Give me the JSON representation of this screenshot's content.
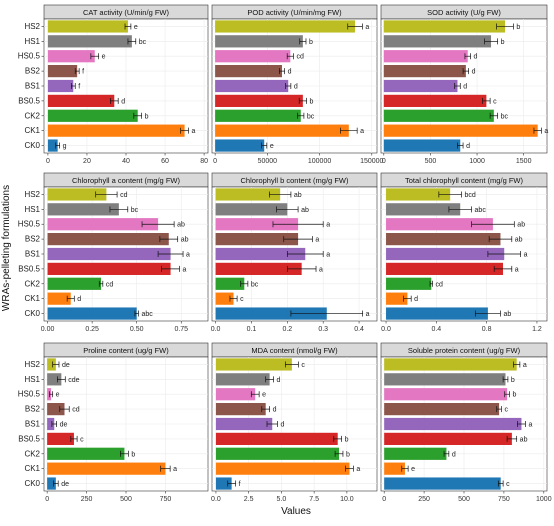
{
  "figure": {
    "ylabel": "WRAs-pelleting formulations",
    "xlabel": "Values",
    "categories": [
      "HS2",
      "HS1",
      "HS0.5",
      "BS2",
      "BS1",
      "BS0.5",
      "CK2",
      "CK1",
      "CK0"
    ],
    "colors": [
      "#bcbd22",
      "#7f7f7f",
      "#e377c2",
      "#8c564b",
      "#9467bd",
      "#d62728",
      "#2ca02c",
      "#ff7f0e",
      "#1f77b4"
    ]
  },
  "chart_data": [
    {
      "type": "bar",
      "orientation": "horizontal",
      "title": "CAT activity (U/min/g FW)",
      "categories": [
        "HS2",
        "HS1",
        "HS0.5",
        "BS2",
        "BS1",
        "BS0.5",
        "CK2",
        "CK1",
        "CK0"
      ],
      "values": [
        41,
        43,
        24,
        15,
        13,
        34,
        46,
        70,
        5
      ],
      "errors": [
        1.5,
        2,
        2,
        1,
        1,
        2,
        2,
        2,
        1
      ],
      "labels": [
        "e",
        "bc",
        "e",
        "f",
        "f",
        "d",
        "b",
        "a",
        "g"
      ],
      "xlim": [
        -2,
        82
      ],
      "xticks": [
        "0",
        "20",
        "40",
        "60",
        "80"
      ],
      "xtick_values": [
        0,
        20,
        40,
        60,
        80
      ]
    },
    {
      "type": "bar",
      "orientation": "horizontal",
      "title": "POD activity (U/min/mg FW)",
      "categories": [
        "HS2",
        "HS1",
        "HS0.5",
        "BS2",
        "BS1",
        "BS0.5",
        "CK2",
        "CK1",
        "CK0"
      ],
      "values": [
        134000,
        84000,
        72000,
        64000,
        70000,
        84000,
        82000,
        128000,
        47000
      ],
      "errors": [
        7000,
        3000,
        3000,
        2500,
        2500,
        3500,
        3000,
        8000,
        2500
      ],
      "labels": [
        "a",
        "b",
        "cd",
        "d",
        "d",
        "b",
        "bc",
        "a",
        "e"
      ],
      "xlim": [
        -3000,
        155000
      ],
      "xticks": [
        "0",
        "50000",
        "100000",
        "150000"
      ],
      "xtick_values": [
        0,
        50000,
        100000,
        150000
      ]
    },
    {
      "type": "bar",
      "orientation": "horizontal",
      "title": "SOD activity (U/g FW)",
      "categories": [
        "HS2",
        "HS1",
        "HS0.5",
        "BS2",
        "BS1",
        "BS0.5",
        "CK2",
        "CK1",
        "CK0"
      ],
      "values": [
        1300,
        1150,
        900,
        880,
        790,
        1100,
        1180,
        1650,
        820
      ],
      "errors": [
        90,
        70,
        30,
        30,
        30,
        40,
        40,
        40,
        30
      ],
      "labels": [
        "b",
        "b",
        "d",
        "d",
        "d",
        "c",
        "bc",
        "a",
        "d"
      ],
      "xlim": [
        -30,
        1750
      ],
      "xticks": [
        "0",
        "500",
        "1000",
        "1500"
      ],
      "xtick_values": [
        0,
        500,
        1000,
        1500
      ]
    },
    {
      "type": "bar",
      "orientation": "horizontal",
      "title": "Chlorophyll a content (mg/g FW)",
      "categories": [
        "HS2",
        "HS1",
        "HS0.5",
        "BS2",
        "BS1",
        "BS0.5",
        "CK2",
        "CK1",
        "CK0"
      ],
      "values": [
        0.33,
        0.4,
        0.62,
        0.68,
        0.69,
        0.69,
        0.3,
        0.13,
        0.5
      ],
      "errors": [
        0.06,
        0.05,
        0.09,
        0.05,
        0.07,
        0.05,
        0.01,
        0.02,
        0.01
      ],
      "labels": [
        "cd",
        "bc",
        "ab",
        "ab",
        "a",
        "a",
        "cd",
        "d",
        "abc"
      ],
      "xlim": [
        -0.02,
        0.9
      ],
      "xticks": [
        "0.00",
        "0.25",
        "0.50",
        "0.75"
      ],
      "xtick_values": [
        0,
        0.25,
        0.5,
        0.75
      ]
    },
    {
      "type": "bar",
      "orientation": "horizontal",
      "title": "Chlorophyll b content (mg/g FW)",
      "categories": [
        "HS2",
        "HS1",
        "HS0.5",
        "BS2",
        "BS1",
        "BS0.5",
        "CK2",
        "CK1",
        "CK0"
      ],
      "values": [
        0.18,
        0.2,
        0.23,
        0.23,
        0.25,
        0.24,
        0.08,
        0.05,
        0.31
      ],
      "errors": [
        0.03,
        0.03,
        0.07,
        0.04,
        0.05,
        0.04,
        0.01,
        0.01,
        0.1
      ],
      "labels": [
        "ab",
        "ab",
        "a",
        "a",
        "a",
        "a",
        "bc",
        "c",
        "a"
      ],
      "xlim": [
        -0.01,
        0.45
      ],
      "xticks": [
        "0.0",
        "0.1",
        "0.2",
        "0.3",
        "0.4"
      ],
      "xtick_values": [
        0,
        0.1,
        0.2,
        0.3,
        0.4
      ]
    },
    {
      "type": "bar",
      "orientation": "horizontal",
      "title": "Total chlorophyll content (mg/g FW)",
      "categories": [
        "HS2",
        "HS1",
        "HS0.5",
        "BS2",
        "BS1",
        "BS0.5",
        "CK2",
        "CK1",
        "CK0"
      ],
      "values": [
        0.51,
        0.59,
        0.85,
        0.91,
        0.94,
        0.93,
        0.36,
        0.17,
        0.81
      ],
      "errors": [
        0.09,
        0.09,
        0.17,
        0.09,
        0.13,
        0.07,
        0.01,
        0.03,
        0.1
      ],
      "labels": [
        "bcd",
        "abc",
        "ab",
        "ab",
        "a",
        "a",
        "cd",
        "d",
        "ab"
      ],
      "xlim": [
        -0.04,
        1.28
      ],
      "xticks": [
        "0.0",
        "0.4",
        "0.8",
        "1.2"
      ],
      "xtick_values": [
        0,
        0.4,
        0.8,
        1.2
      ]
    },
    {
      "type": "bar",
      "orientation": "horizontal",
      "title": "Proline content (ug/g FW)",
      "categories": [
        "HS2",
        "HS1",
        "HS0.5",
        "BS2",
        "BS1",
        "BS0.5",
        "CK2",
        "CK1",
        "CK0"
      ],
      "values": [
        55,
        90,
        25,
        110,
        45,
        170,
        490,
        750,
        55
      ],
      "errors": [
        20,
        25,
        10,
        30,
        15,
        20,
        25,
        30,
        15
      ],
      "labels": [
        "de",
        "cde",
        "e",
        "cd",
        "de",
        "c",
        "b",
        "a",
        "de"
      ],
      "xlim": [
        -20,
        1020
      ],
      "xticks": [
        "0",
        "250",
        "500",
        "750"
      ],
      "xtick_values": [
        0,
        250,
        500,
        750
      ]
    },
    {
      "type": "bar",
      "orientation": "horizontal",
      "title": "MDA content (nmol/g FW)",
      "categories": [
        "HS2",
        "HS1",
        "HS0.5",
        "BS2",
        "BS1",
        "BS0.5",
        "CK2",
        "CK1",
        "CK0"
      ],
      "values": [
        5.8,
        4.1,
        3,
        3.8,
        4.3,
        9.3,
        9.4,
        10.2,
        1.2
      ],
      "errors": [
        0.5,
        0.3,
        0.3,
        0.3,
        0.4,
        0.3,
        0.3,
        0.3,
        0.3
      ],
      "labels": [
        "c",
        "d",
        "e",
        "d",
        "d",
        "b",
        "b",
        "a",
        "f"
      ],
      "xlim": [
        -0.3,
        12.3
      ],
      "xticks": [
        "0.0",
        "2.5",
        "5.0",
        "7.5",
        "10.0"
      ],
      "xtick_values": [
        0,
        2.5,
        5,
        7.5,
        10
      ]
    },
    {
      "type": "bar",
      "orientation": "horizontal",
      "title": "Soluble protein content (ug/g FW)",
      "categories": [
        "HS2",
        "HS1",
        "HS0.5",
        "BS2",
        "BS1",
        "BS0.5",
        "CK2",
        "CK1",
        "CK0"
      ],
      "values": [
        830,
        760,
        770,
        720,
        860,
        800,
        390,
        130,
        730
      ],
      "errors": [
        20,
        15,
        15,
        15,
        25,
        30,
        15,
        20,
        15
      ],
      "labels": [
        "a",
        "b",
        "b",
        "c",
        "a",
        "ab",
        "d",
        "e",
        "c"
      ],
      "xlim": [
        -20,
        1020
      ],
      "xticks": [
        "0",
        "250",
        "500",
        "750",
        "1000"
      ],
      "xtick_values": [
        0,
        250,
        500,
        750,
        1000
      ]
    }
  ]
}
